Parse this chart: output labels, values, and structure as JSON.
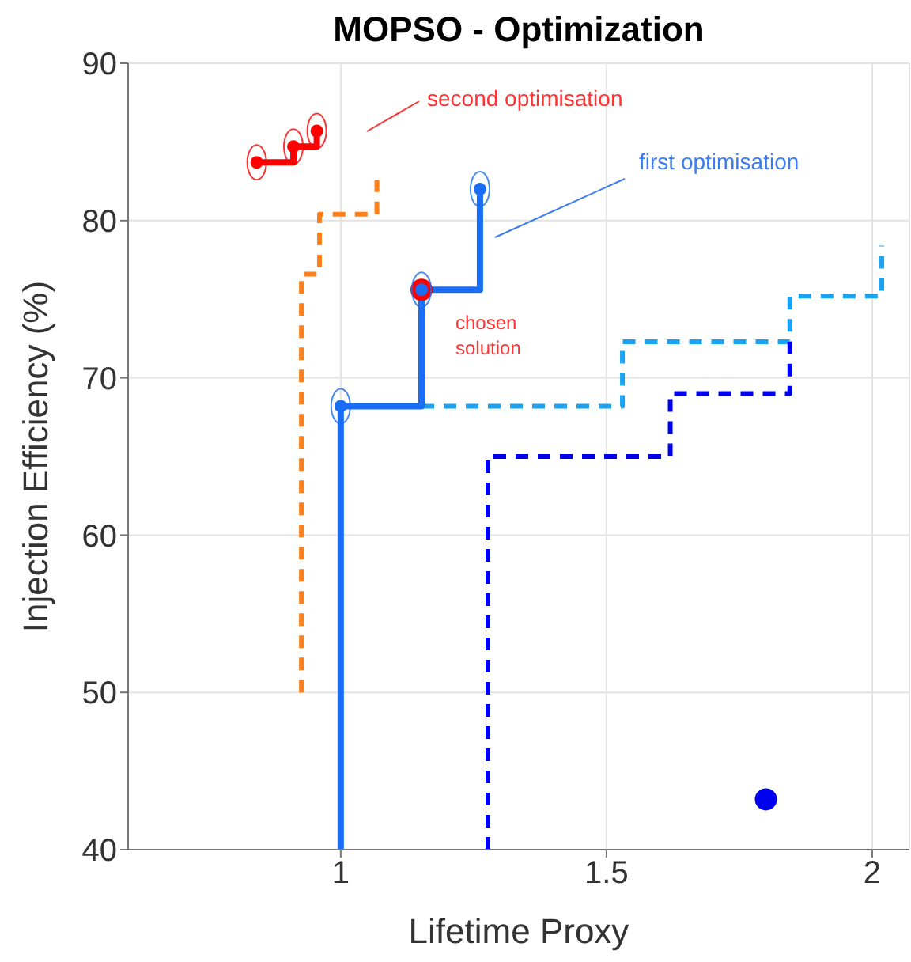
{
  "chart_data": {
    "type": "line",
    "title": "MOPSO - Optimization",
    "xlabel": "Lifetime Proxy",
    "ylabel": "Injection Efficiency (%)",
    "xlim": [
      0.6,
      2.07
    ],
    "xticks": [
      1,
      1.5,
      2
    ],
    "ylim": [
      40,
      90
    ],
    "yticks": [
      40,
      50,
      60,
      70,
      80,
      90
    ],
    "grid": true,
    "series": [
      {
        "color": "#ff7f1a",
        "line_style": "dashed",
        "x": [
          0.926,
          0.926,
          0.96,
          0.96,
          1.068,
          1.068
        ],
        "values": [
          50.0,
          76.6,
          76.6,
          80.4,
          80.4,
          82.6
        ]
      },
      {
        "color": "#1aa3f5",
        "line_style": "dashed",
        "x": [
          1.152,
          1.53,
          1.53,
          1.845,
          1.845,
          2.018,
          2.018
        ],
        "values": [
          68.2,
          68.2,
          72.3,
          72.3,
          75.2,
          75.2,
          78.4
        ]
      },
      {
        "color": "#0000f0",
        "line_style": "dashed",
        "x": [
          1.277,
          1.277,
          1.62,
          1.62,
          1.845,
          1.845
        ],
        "values": [
          40,
          65.0,
          65.0,
          69.0,
          69.0,
          72.3
        ]
      },
      {
        "type": "scatter",
        "color": "#ff0000",
        "marker": "circle",
        "x": [
          1.152
        ],
        "values": [
          75.6
        ]
      },
      {
        "color": "#1a6ef5",
        "line_style": "solid",
        "x": [
          1.0,
          1.0,
          1.152,
          1.152,
          1.262,
          1.262
        ],
        "values": [
          40,
          68.2,
          68.2,
          75.6,
          75.6,
          82.0
        ]
      },
      {
        "type": "scatter",
        "color": "#1a6ef5",
        "marker": "circle",
        "x": [
          1.0,
          1.152,
          1.262
        ],
        "values": [
          68.2,
          75.6,
          82.0
        ]
      },
      {
        "color": "#ff0000",
        "line_style": "solid",
        "x": [
          0.842,
          0.911,
          0.911,
          0.955,
          0.955
        ],
        "values": [
          83.7,
          83.7,
          84.7,
          84.7,
          85.7
        ]
      },
      {
        "type": "scatter",
        "color": "#ff0000",
        "marker": "circle",
        "x": [
          0.842,
          0.911,
          0.955
        ],
        "values": [
          83.7,
          84.7,
          85.7
        ]
      },
      {
        "type": "scatter",
        "color": "#0000f0",
        "marker": "circle",
        "x": [
          1.8
        ],
        "values": [
          43.2
        ]
      }
    ],
    "annotations": [
      "second optimisation",
      "first optimisation",
      "chosen solution"
    ]
  }
}
